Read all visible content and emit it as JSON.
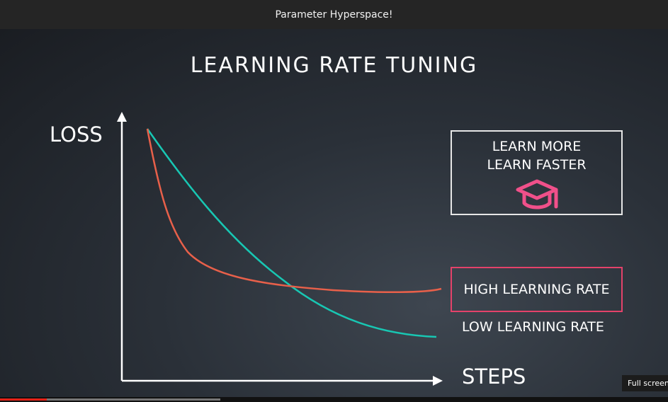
{
  "video": {
    "title": "Parameter Hyperspace!",
    "progress_played": 0.07,
    "progress_buffered": 0.33
  },
  "slide": {
    "title": "LEARNING RATE TUNING",
    "y_axis_label": "LOSS",
    "x_axis_label": "STEPS",
    "info_box": {
      "line1": "LEARN MORE",
      "line2": "LEARN FASTER",
      "icon": "graduation-cap-icon"
    },
    "legend": {
      "high": "HIGH LEARNING RATE",
      "low": "LOW LEARNING RATE"
    },
    "colors": {
      "high_curve": "#e8604a",
      "low_curve": "#18c7b3",
      "accent": "#e4426a",
      "cap_icon": "#f0508a"
    }
  },
  "tooltip": {
    "text": "Full screen"
  }
}
